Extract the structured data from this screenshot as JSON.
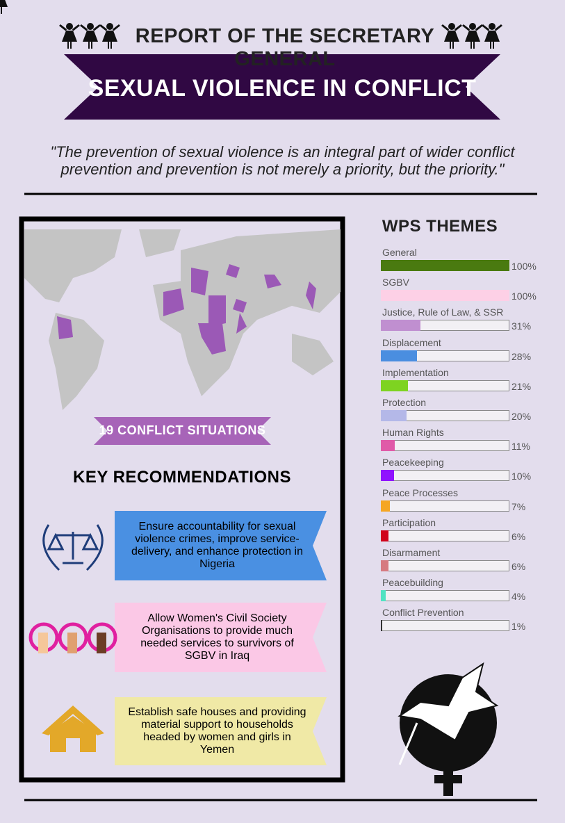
{
  "header": {
    "title": "REPORT OF THE SECRETARY GENERAL",
    "banner": "SEXUAL VIOLENCE IN CONFLICT"
  },
  "quote": "\"The prevention of sexual violence is an integral part of wider conflict prevention and prevention is not merely a priority, but the priority.\"",
  "map_label": "19 CONFLICT SITUATIONS",
  "recommendations": {
    "title": "KEY RECOMMENDATIONS",
    "items": [
      "Ensure accountability for sexual violence crimes, improve service-delivery, and enhance protection in Nigeria",
      "Allow Women's Civil Society Organisations to provide much needed services to survivors of SGBV in Iraq",
      "Establish safe houses and providing material support to households headed by women and girls in Yemen"
    ]
  },
  "chart_data": {
    "type": "bar",
    "title": "WPS THEMES",
    "categories": [
      "General",
      "SGBV",
      "Justice, Rule of Law, & SSR",
      "Displacement",
      "Implementation",
      "Protection",
      "Human Rights",
      "Peacekeeping",
      "Peace Processes",
      "Participation",
      "Disarmament",
      "Peacebuilding",
      "Conflict Prevention"
    ],
    "values": [
      100,
      100,
      31,
      28,
      21,
      20,
      11,
      10,
      7,
      6,
      6,
      4,
      1
    ],
    "value_labels": [
      "100%",
      "100%",
      "31%",
      "28%",
      "21%",
      "20%",
      "11%",
      "10%",
      "7%",
      "6%",
      "6%",
      "4%",
      "1%"
    ],
    "colors": [
      "#4a7a10",
      "#fdd0e6",
      "#c08fd0",
      "#4a8ee0",
      "#7ed321",
      "#b4b8e8",
      "#e05aa8",
      "#9013fe",
      "#f5a623",
      "#d0021b",
      "#d67a80",
      "#50e3c2",
      "#333333"
    ],
    "xlim": [
      0,
      100
    ]
  }
}
